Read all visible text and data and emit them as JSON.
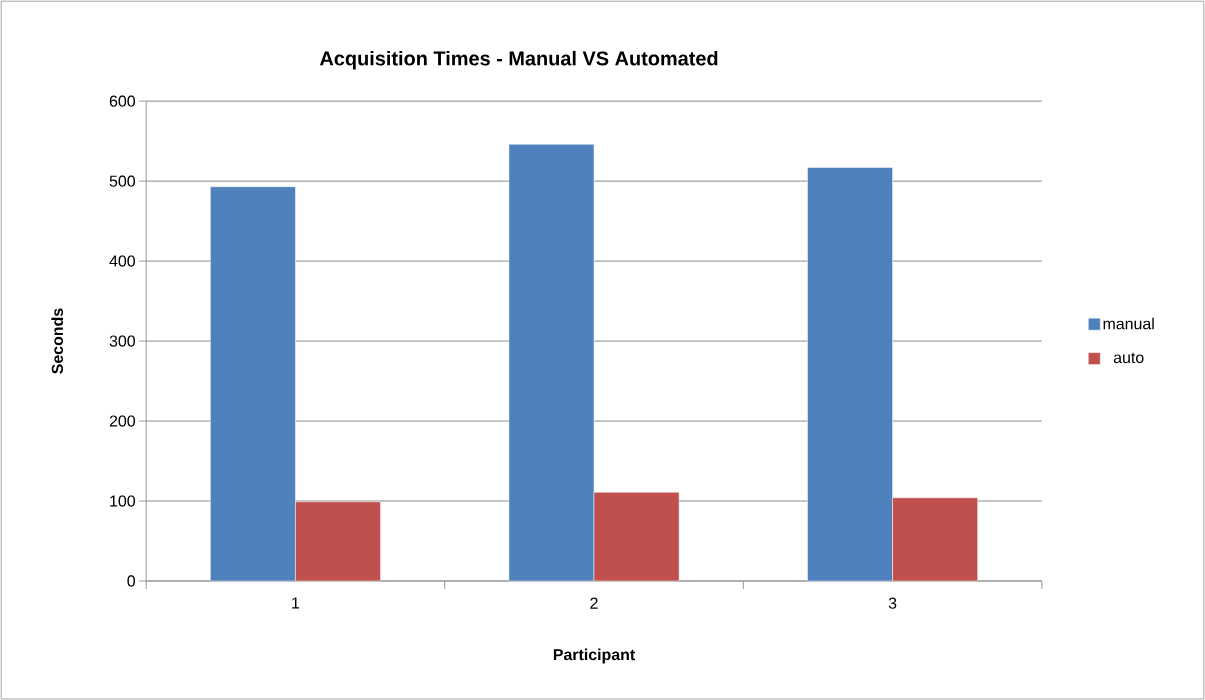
{
  "chart_data": {
    "type": "bar",
    "title": "Acquisition Times - Manual VS Automated",
    "xlabel": "Participant",
    "ylabel": "Seconds",
    "categories": [
      "1",
      "2",
      "3"
    ],
    "series": [
      {
        "name": "manual",
        "color": "#4f81bd",
        "values": [
          493,
          546,
          517
        ]
      },
      {
        "name": "auto",
        "color": "#c0504d",
        "values": [
          99,
          111,
          104
        ]
      }
    ],
    "ylim": [
      0,
      600
    ],
    "yticks": [
      0,
      100,
      200,
      300,
      400,
      500,
      600
    ],
    "grid": "y",
    "legend": "right"
  }
}
